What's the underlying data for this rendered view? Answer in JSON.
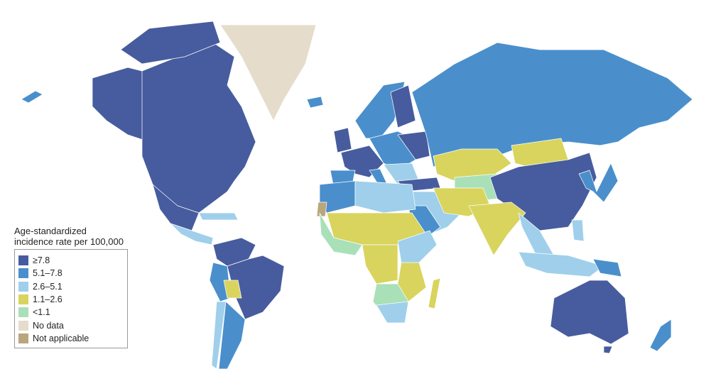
{
  "legend": {
    "title_line1": "Age-standardized",
    "title_line2": "incidence rate per 100,000",
    "items": [
      {
        "label": "≥7.8",
        "color": "#475c9e"
      },
      {
        "label": "5.1–7.8",
        "color": "#4a8fcb"
      },
      {
        "label": "2.6–5.1",
        "color": "#9fcfeb"
      },
      {
        "label": "1.1–2.6",
        "color": "#d8d45e"
      },
      {
        "label": "<1.1",
        "color": "#a9e0b8"
      },
      {
        "label": "No data",
        "color": "#e5dccb"
      },
      {
        "label": "Not applicable",
        "color": "#b9a67c"
      }
    ]
  }
}
